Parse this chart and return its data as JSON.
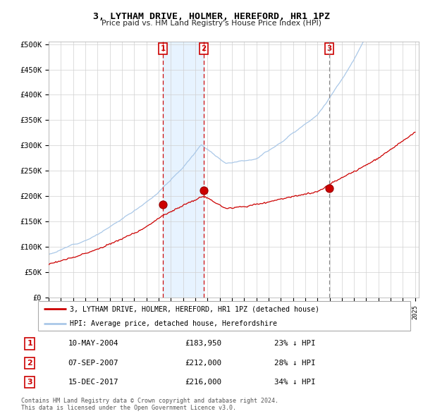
{
  "title": "3, LYTHAM DRIVE, HOLMER, HEREFORD, HR1 1PZ",
  "subtitle": "Price paid vs. HM Land Registry's House Price Index (HPI)",
  "y_ticks": [
    0,
    50000,
    100000,
    150000,
    200000,
    250000,
    300000,
    350000,
    400000,
    450000,
    500000
  ],
  "y_tick_labels": [
    "£0",
    "£50K",
    "£100K",
    "£150K",
    "£200K",
    "£250K",
    "£300K",
    "£350K",
    "£400K",
    "£450K",
    "£500K"
  ],
  "hpi_color": "#aac8e8",
  "price_color": "#cc0000",
  "shade_color": "#ddeeff",
  "sale1_date": 2004.36,
  "sale1_price": 183950,
  "sale2_date": 2007.69,
  "sale2_price": 212000,
  "sale3_date": 2017.96,
  "sale3_price": 216000,
  "legend_line1": "3, LYTHAM DRIVE, HOLMER, HEREFORD, HR1 1PZ (detached house)",
  "legend_line2": "HPI: Average price, detached house, Herefordshire",
  "table_rows": [
    [
      "1",
      "10-MAY-2004",
      "£183,950",
      "23% ↓ HPI"
    ],
    [
      "2",
      "07-SEP-2007",
      "£212,000",
      "28% ↓ HPI"
    ],
    [
      "3",
      "15-DEC-2017",
      "£216,000",
      "34% ↓ HPI"
    ]
  ],
  "footnote1": "Contains HM Land Registry data © Crown copyright and database right 2024.",
  "footnote2": "This data is licensed under the Open Government Licence v3.0."
}
